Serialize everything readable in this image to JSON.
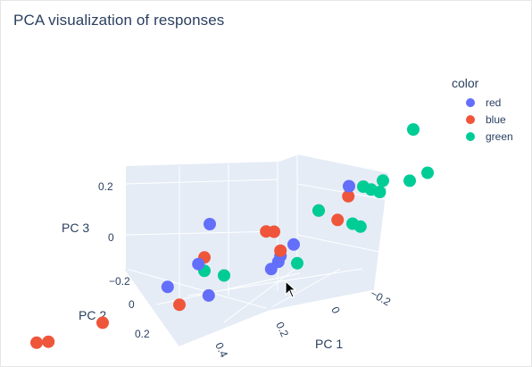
{
  "page": {
    "title": "PCA visualization of responses"
  },
  "legend": {
    "title": "color",
    "items": [
      {
        "label": "red",
        "color": "#636efa"
      },
      {
        "label": "blue",
        "color": "#ef553b"
      },
      {
        "label": "green",
        "color": "#00cc96"
      }
    ]
  },
  "chart_data": {
    "type": "scatter3d",
    "title": "PCA visualization of responses",
    "axes": {
      "x": {
        "label": "PC 1",
        "ticks": [
          "−0.2",
          "0",
          "0.2",
          "0.4"
        ]
      },
      "y": {
        "label": "PC 2",
        "ticks": [
          "−0.2",
          "0",
          "0.2"
        ]
      },
      "z": {
        "label": "PC 3",
        "ticks": [
          "0",
          "0.2"
        ]
      }
    },
    "legend_position": "top-right",
    "series": [
      {
        "name": "red",
        "color": "#636efa",
        "points": [
          [
            0.42,
            -0.15,
            0.02
          ],
          [
            0.2,
            0.0,
            0.15
          ],
          [
            0.1,
            -0.2,
            0.14
          ],
          [
            0.18,
            0.1,
            -0.04
          ],
          [
            0.05,
            -0.05,
            -0.02
          ],
          [
            0.02,
            0.0,
            -0.05
          ],
          [
            0.0,
            0.02,
            -0.07
          ],
          [
            -0.02,
            0.05,
            -0.09
          ],
          [
            0.05,
            0.12,
            -0.12
          ]
        ]
      },
      {
        "name": "blue",
        "color": "#ef553b",
        "points": [
          [
            0.45,
            0.15,
            -0.1
          ],
          [
            0.42,
            0.15,
            -0.11
          ],
          [
            0.32,
            0.12,
            -0.1
          ],
          [
            0.15,
            0.1,
            -0.12
          ],
          [
            0.1,
            -0.05,
            0.05
          ],
          [
            0.15,
            0.05,
            0.03
          ],
          [
            0.12,
            -0.05,
            0.06
          ],
          [
            0.05,
            -0.1,
            0.08
          ],
          [
            0.0,
            -0.12,
            0.1
          ],
          [
            0.02,
            0.0,
            -0.03
          ],
          [
            -0.1,
            -0.02,
            0.02
          ]
        ]
      },
      {
        "name": "green",
        "color": "#00cc96",
        "points": [
          [
            0.0,
            -0.25,
            0.28
          ],
          [
            0.0,
            -0.15,
            0.12
          ],
          [
            -0.02,
            -0.15,
            0.1
          ],
          [
            -0.08,
            -0.18,
            0.09
          ],
          [
            -0.1,
            -0.2,
            0.1
          ],
          [
            -0.08,
            -0.12,
            0.08
          ],
          [
            0.05,
            -0.1,
            0.08
          ],
          [
            0.15,
            0.05,
            -0.02
          ],
          [
            0.1,
            0.05,
            -0.06
          ],
          [
            -0.1,
            -0.05,
            -0.01
          ],
          [
            -0.12,
            -0.05,
            -0.03
          ],
          [
            -0.15,
            0.1,
            -0.1
          ],
          [
            -0.05,
            -0.15,
            0.12
          ]
        ]
      }
    ]
  }
}
